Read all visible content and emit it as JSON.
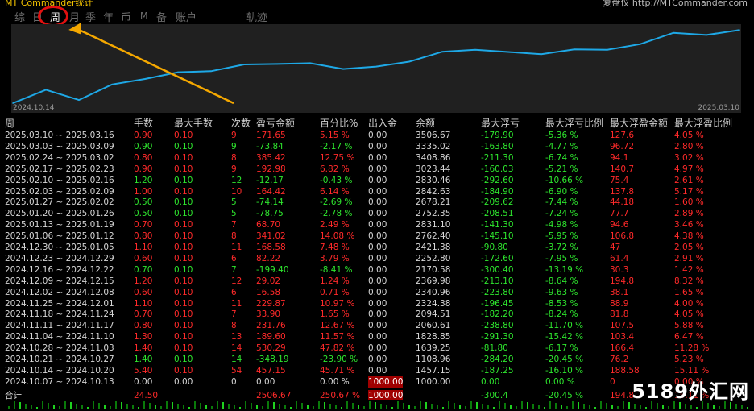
{
  "brand": "MT Commander统计",
  "site": "复盘仪 http://MTCommander.com",
  "tabs": [
    {
      "label": "综",
      "active": false
    },
    {
      "label": "日",
      "active": false
    },
    {
      "label": "周",
      "active": true
    },
    {
      "label": "月",
      "active": false
    },
    {
      "label": "季",
      "active": false
    },
    {
      "label": "年",
      "active": false
    },
    {
      "label": "币",
      "active": false
    },
    {
      "label": "M",
      "active": false
    },
    {
      "label": "备",
      "active": false
    },
    {
      "label": "账户",
      "active": false
    },
    {
      "label": "轨迹",
      "active": false
    }
  ],
  "chart_data": {
    "type": "line",
    "x": [
      "2024.10.07",
      "2024.10.14",
      "2024.10.21",
      "2024.10.28",
      "2024.11.04",
      "2024.11.11",
      "2024.11.18",
      "2024.11.25",
      "2024.12.02",
      "2024.12.09",
      "2024.12.16",
      "2024.12.23",
      "2024.12.30",
      "2025.01.06",
      "2025.01.13",
      "2025.01.20",
      "2025.01.27",
      "2025.02.03",
      "2025.02.10",
      "2025.02.17",
      "2025.02.24",
      "2025.03.03",
      "2025.03.10"
    ],
    "values": [
      1000.0,
      1457.15,
      1108.96,
      1639.25,
      1828.85,
      2060.61,
      2094.51,
      2324.38,
      2340.96,
      2369.98,
      2170.58,
      2252.8,
      2421.38,
      2762.4,
      2831.1,
      2752.35,
      2678.21,
      2842.63,
      2830.46,
      3023.44,
      3408.86,
      3335.02,
      3506.67
    ],
    "x_start_label": "2024.10.14",
    "x_end_label": "2025.03.10",
    "line_color": "#1ea8e6"
  },
  "headers": [
    "周",
    "手数",
    "最大手数",
    "次数",
    "盈亏金额",
    "百分比%",
    "出入金",
    "余额",
    "最大浮亏",
    "最大浮亏比例",
    "最大浮盈金额",
    "最大浮盈比例"
  ],
  "rows": [
    [
      "2025.03.10 ~ 2025.03.16",
      "0.90",
      "0.10",
      "9",
      "171.65",
      "5.15 %",
      "0.00",
      "3506.67",
      "-179.90",
      "-5.36 %",
      "127.6",
      "4.05 %"
    ],
    [
      "2025.03.03 ~ 2025.03.09",
      "0.90",
      "0.10",
      "9",
      "-73.84",
      "-2.17 %",
      "0.00",
      "3335.02",
      "-163.80",
      "-4.77 %",
      "96.72",
      "2.80 %"
    ],
    [
      "2025.02.24 ~ 2025.03.02",
      "0.80",
      "0.10",
      "8",
      "385.42",
      "12.75 %",
      "0.00",
      "3408.86",
      "-211.30",
      "-6.74 %",
      "94.1",
      "3.02 %"
    ],
    [
      "2025.02.17 ~ 2025.02.23",
      "0.90",
      "0.10",
      "9",
      "192.98",
      "6.82 %",
      "0.00",
      "3023.44",
      "-160.03",
      "-5.21 %",
      "140.7",
      "4.97 %"
    ],
    [
      "2025.02.10 ~ 2025.02.16",
      "1.20",
      "0.10",
      "12",
      "-12.17",
      "-0.43 %",
      "0.00",
      "2830.46",
      "-292.60",
      "-10.66 %",
      "75.4",
      "2.61 %"
    ],
    [
      "2025.02.03 ~ 2025.02.09",
      "1.00",
      "0.10",
      "10",
      "164.42",
      "6.14 %",
      "0.00",
      "2842.63",
      "-184.90",
      "-6.90 %",
      "137.8",
      "5.17 %"
    ],
    [
      "2025.01.27 ~ 2025.02.02",
      "0.50",
      "0.10",
      "5",
      "-74.14",
      "-2.69 %",
      "0.00",
      "2678.21",
      "-209.62",
      "-7.44 %",
      "44.18",
      "1.60 %"
    ],
    [
      "2025.01.20 ~ 2025.01.26",
      "0.50",
      "0.10",
      "5",
      "-78.75",
      "-2.78 %",
      "0.00",
      "2752.35",
      "-208.51",
      "-7.24 %",
      "77.7",
      "2.89 %"
    ],
    [
      "2025.01.13 ~ 2025.01.19",
      "0.70",
      "0.10",
      "7",
      "68.70",
      "2.49 %",
      "0.00",
      "2831.10",
      "-141.30",
      "-4.98 %",
      "94.6",
      "3.46 %"
    ],
    [
      "2025.01.06 ~ 2025.01.12",
      "0.80",
      "0.10",
      "8",
      "341.02",
      "14.08 %",
      "0.00",
      "2762.40",
      "-145.10",
      "-5.95 %",
      "106.8",
      "4.38 %"
    ],
    [
      "2024.12.30 ~ 2025.01.05",
      "1.10",
      "0.10",
      "11",
      "168.58",
      "7.48 %",
      "0.00",
      "2421.38",
      "-90.80",
      "-3.72 %",
      "47",
      "2.05 %"
    ],
    [
      "2024.12.23 ~ 2024.12.29",
      "0.60",
      "0.10",
      "6",
      "82.22",
      "3.79 %",
      "0.00",
      "2252.80",
      "-172.60",
      "-7.95 %",
      "61.4",
      "2.91 %"
    ],
    [
      "2024.12.16 ~ 2024.12.22",
      "0.70",
      "0.10",
      "7",
      "-199.40",
      "-8.41 %",
      "0.00",
      "2170.58",
      "-300.40",
      "-13.19 %",
      "30.3",
      "1.42 %"
    ],
    [
      "2024.12.09 ~ 2024.12.15",
      "1.20",
      "0.10",
      "12",
      "29.02",
      "1.24 %",
      "0.00",
      "2369.98",
      "-213.10",
      "-8.64 %",
      "194.8",
      "8.32 %"
    ],
    [
      "2024.12.02 ~ 2024.12.08",
      "0.60",
      "0.10",
      "6",
      "16.58",
      "0.71 %",
      "0.00",
      "2340.96",
      "-223.80",
      "-9.63 %",
      "38.1",
      "1.65 %"
    ],
    [
      "2024.11.25 ~ 2024.12.01",
      "1.10",
      "0.10",
      "11",
      "229.87",
      "10.97 %",
      "0.00",
      "2324.38",
      "-196.45",
      "-8.53 %",
      "88.9",
      "4.00 %"
    ],
    [
      "2024.11.18 ~ 2024.11.24",
      "0.70",
      "0.10",
      "7",
      "33.90",
      "1.65 %",
      "0.00",
      "2094.51",
      "-182.20",
      "-8.24 %",
      "81.8",
      "4.05 %"
    ],
    [
      "2024.11.11 ~ 2024.11.17",
      "0.80",
      "0.10",
      "8",
      "231.76",
      "12.67 %",
      "0.00",
      "2060.61",
      "-238.80",
      "-11.70 %",
      "107.5",
      "5.88 %"
    ],
    [
      "2024.11.04 ~ 2024.11.10",
      "1.30",
      "0.10",
      "13",
      "189.60",
      "11.57 %",
      "0.00",
      "1828.85",
      "-291.30",
      "-15.42 %",
      "103.4",
      "6.47 %"
    ],
    [
      "2024.10.28 ~ 2024.11.03",
      "1.40",
      "0.10",
      "14",
      "530.29",
      "47.82 %",
      "0.00",
      "1639.25",
      "-81.80",
      "-6.17 %",
      "166.4",
      "11.28 %"
    ],
    [
      "2024.10.21 ~ 2024.10.27",
      "1.40",
      "0.10",
      "14",
      "-348.19",
      "-23.90 %",
      "0.00",
      "1108.96",
      "-284.20",
      "-20.45 %",
      "76.2",
      "5.23 %"
    ],
    [
      "2024.10.14 ~ 2024.10.20",
      "5.40",
      "0.10",
      "54",
      "457.15",
      "45.71 %",
      "0.00",
      "1457.15",
      "-187.25",
      "-16.10 %",
      "188.58",
      "15.11 %"
    ],
    [
      "2024.10.07 ~ 2024.10.13",
      "0.00",
      "0.00",
      "0",
      "0.00",
      "0.00 %",
      "1000.00",
      "1000.00",
      "0.00",
      "0.00 %",
      "0",
      "0.00 %"
    ]
  ],
  "totals": [
    "合计",
    "24.50",
    "",
    "",
    "2506.67",
    "250.67 %",
    "1000.00",
    "",
    "-300.4",
    "-20.45 %",
    "194.8",
    "15.11 %"
  ],
  "watermark": "5189外汇网"
}
